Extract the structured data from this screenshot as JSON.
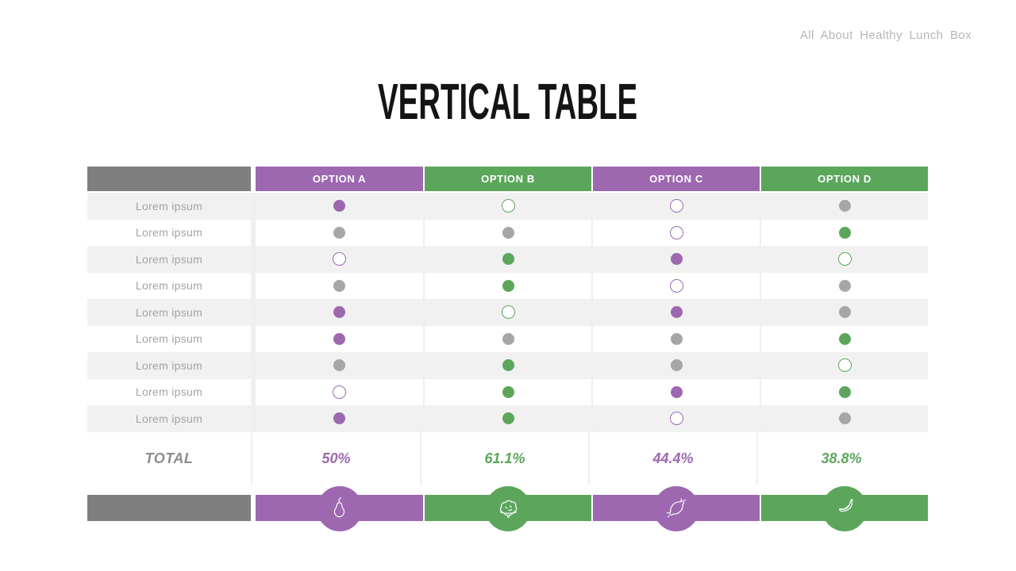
{
  "slide": {
    "brand": "All About Healthy Lunch Box",
    "title": "VERTICAL TABLE"
  },
  "colors": {
    "purple": "#9d68b0",
    "green": "#5ca65c",
    "header_gray": "#7f7f7f",
    "dot_gray": "#a6a6a6",
    "row_stripe": "#f1f1f1",
    "separator": "#efefef",
    "label_text": "#a3a3a3",
    "total_text": "#8c8c8c",
    "title_text": "#141414",
    "brand_text": "#b5b5b5"
  },
  "table": {
    "columns": [
      {
        "label": "OPTION A",
        "color": "purple"
      },
      {
        "label": "OPTION B",
        "color": "green"
      },
      {
        "label": "OPTION C",
        "color": "purple"
      },
      {
        "label": "OPTION D",
        "color": "green"
      }
    ],
    "rows": [
      {
        "label": "Lorem ipsum",
        "dots": [
          "purple-filled",
          "green-outline",
          "purple-outline",
          "gray-filled"
        ]
      },
      {
        "label": "Lorem ipsum",
        "dots": [
          "gray-filled",
          "gray-filled",
          "purple-outline",
          "green-filled"
        ]
      },
      {
        "label": "Lorem ipsum",
        "dots": [
          "purple-outline",
          "green-filled",
          "purple-filled",
          "green-outline"
        ]
      },
      {
        "label": "Lorem ipsum",
        "dots": [
          "gray-filled",
          "green-filled",
          "purple-outline",
          "gray-filled"
        ]
      },
      {
        "label": "Lorem ipsum",
        "dots": [
          "purple-filled",
          "green-outline",
          "purple-filled",
          "gray-filled"
        ]
      },
      {
        "label": "Lorem ipsum",
        "dots": [
          "purple-filled",
          "gray-filled",
          "gray-filled",
          "green-filled"
        ]
      },
      {
        "label": "Lorem ipsum",
        "dots": [
          "gray-filled",
          "green-filled",
          "gray-filled",
          "green-outline"
        ]
      },
      {
        "label": "Lorem ipsum",
        "dots": [
          "purple-outline",
          "green-filled",
          "purple-filled",
          "green-filled"
        ]
      },
      {
        "label": "Lorem ipsum",
        "dots": [
          "purple-filled",
          "green-filled",
          "purple-outline",
          "gray-filled"
        ]
      }
    ],
    "total": {
      "label": "TOTAL",
      "values": [
        {
          "value": "50%",
          "color": "purple"
        },
        {
          "value": "61.1%",
          "color": "green"
        },
        {
          "value": "44.4%",
          "color": "purple"
        },
        {
          "value": "38.8%",
          "color": "green"
        }
      ]
    },
    "footer_icons": [
      {
        "icon": "pear-icon",
        "color": "purple"
      },
      {
        "icon": "cabbage-icon",
        "color": "green"
      },
      {
        "icon": "sausage-icon",
        "color": "purple"
      },
      {
        "icon": "banana-icon",
        "color": "green"
      }
    ]
  }
}
